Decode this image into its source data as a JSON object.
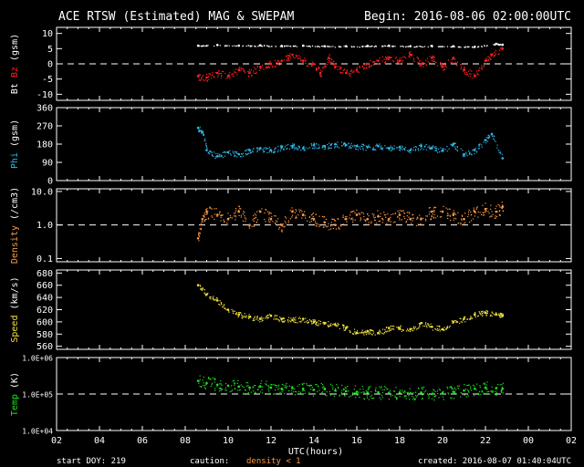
{
  "header": {
    "title": "ACE RTSW (Estimated) MAG & SWEPAM",
    "begin": "Begin: 2016-08-06 02:00:00UTC"
  },
  "footer": {
    "start_doy": "start DOY: 219",
    "caution_label": "caution:",
    "caution_text": "density < 1",
    "created": "created: 2016-08-07 01:40:04UTC"
  },
  "colors": {
    "bt": "#ffffff",
    "bz": "#ff2020",
    "phi": "#30b8e8",
    "density": "#ff9a40",
    "speed": "#f0e040",
    "temp": "#20e020",
    "axis": "#ffffff",
    "caution": "#ff9a40"
  },
  "chart_data": {
    "type": "scatter",
    "xlabel": "UTC(hours)",
    "x_ticks": [
      "02",
      "04",
      "06",
      "08",
      "10",
      "12",
      "14",
      "16",
      "18",
      "20",
      "22",
      "00",
      "02"
    ],
    "x_range_hours": [
      2,
      26
    ],
    "data_start_hour": 8.6,
    "data_end_hour": 22.8,
    "panels": [
      {
        "id": "mag",
        "ylabel_parts": [
          "Bt",
          "Bz",
          "(gsm)"
        ],
        "ylim": [
          -12,
          12
        ],
        "yticks": [
          10,
          5,
          0,
          -5,
          -10
        ],
        "reference_line": 0,
        "series": [
          {
            "name": "Bt",
            "color_key": "bt",
            "points": [
              [
                8.6,
                6.0
              ],
              [
                9.5,
                6.2
              ],
              [
                10.5,
                6.0
              ],
              [
                11.5,
                6.1
              ],
              [
                12.5,
                5.9
              ],
              [
                13.5,
                6.0
              ],
              [
                14.5,
                5.8
              ],
              [
                15.5,
                5.8
              ],
              [
                16.5,
                5.9
              ],
              [
                17.5,
                6.0
              ],
              [
                18.5,
                5.8
              ],
              [
                19.5,
                5.9
              ],
              [
                20.5,
                5.8
              ],
              [
                21.5,
                5.6
              ],
              [
                22.5,
                6.6
              ],
              [
                22.8,
                6.3
              ]
            ]
          },
          {
            "name": "Bz",
            "color_key": "bz",
            "points": [
              [
                8.6,
                -4
              ],
              [
                9.0,
                -4.5
              ],
              [
                9.5,
                -3
              ],
              [
                10.0,
                -4
              ],
              [
                10.5,
                -2
              ],
              [
                11.0,
                -3
              ],
              [
                11.5,
                -1
              ],
              [
                12.0,
                0
              ],
              [
                12.5,
                1
              ],
              [
                13.0,
                3
              ],
              [
                13.5,
                1
              ],
              [
                14.0,
                0
              ],
              [
                14.3,
                -3
              ],
              [
                14.7,
                2
              ],
              [
                15.0,
                -1
              ],
              [
                15.5,
                -3
              ],
              [
                16.0,
                -2
              ],
              [
                16.5,
                0
              ],
              [
                17.0,
                1
              ],
              [
                17.5,
                2
              ],
              [
                18.0,
                1
              ],
              [
                18.5,
                3
              ],
              [
                19.0,
                0
              ],
              [
                19.5,
                2
              ],
              [
                20.0,
                -1
              ],
              [
                20.5,
                2
              ],
              [
                21.0,
                -2
              ],
              [
                21.5,
                -4
              ],
              [
                22.0,
                1
              ],
              [
                22.3,
                3
              ],
              [
                22.8,
                5
              ]
            ]
          }
        ]
      },
      {
        "id": "phi",
        "ylabel_parts": [
          "Phi",
          "(gsm)"
        ],
        "ylim": [
          0,
          360
        ],
        "yticks": [
          360,
          270,
          180,
          90,
          0
        ],
        "series": [
          {
            "name": "Phi",
            "color_key": "phi",
            "points": [
              [
                8.6,
                260
              ],
              [
                8.8,
                240
              ],
              [
                9.0,
                150
              ],
              [
                9.5,
                120
              ],
              [
                10.0,
                140
              ],
              [
                10.5,
                130
              ],
              [
                11.0,
                150
              ],
              [
                11.5,
                160
              ],
              [
                12.0,
                150
              ],
              [
                12.5,
                165
              ],
              [
                13.0,
                170
              ],
              [
                13.5,
                160
              ],
              [
                14.0,
                175
              ],
              [
                14.5,
                170
              ],
              [
                15.0,
                180
              ],
              [
                15.5,
                175
              ],
              [
                16.0,
                170
              ],
              [
                16.5,
                165
              ],
              [
                17.0,
                170
              ],
              [
                17.5,
                160
              ],
              [
                18.0,
                165
              ],
              [
                18.5,
                150
              ],
              [
                19.0,
                170
              ],
              [
                19.5,
                160
              ],
              [
                20.0,
                150
              ],
              [
                20.5,
                180
              ],
              [
                21.0,
                130
              ],
              [
                21.5,
                150
              ],
              [
                22.0,
                200
              ],
              [
                22.3,
                230
              ],
              [
                22.8,
                110
              ]
            ]
          }
        ]
      },
      {
        "id": "density",
        "ylabel_parts": [
          "Density",
          "(/cm3)"
        ],
        "scale": "log",
        "ylim": [
          0.08,
          12
        ],
        "yticks": [
          10.0,
          1.0,
          0.1
        ],
        "reference_line": 1.0,
        "series": [
          {
            "name": "Density",
            "color_key": "density",
            "points": [
              [
                8.6,
                0.4
              ],
              [
                8.8,
                1.5
              ],
              [
                9.0,
                2.5
              ],
              [
                9.5,
                2.0
              ],
              [
                10.0,
                1.5
              ],
              [
                10.5,
                2.5
              ],
              [
                11.0,
                1.0
              ],
              [
                11.5,
                2.5
              ],
              [
                12.0,
                1.5
              ],
              [
                12.5,
                1.0
              ],
              [
                13.0,
                2.5
              ],
              [
                13.5,
                2.0
              ],
              [
                14.0,
                1.5
              ],
              [
                14.5,
                1.2
              ],
              [
                15.0,
                1.0
              ],
              [
                15.5,
                1.5
              ],
              [
                16.0,
                2.0
              ],
              [
                16.5,
                1.5
              ],
              [
                17.0,
                1.8
              ],
              [
                17.5,
                1.5
              ],
              [
                18.0,
                2.0
              ],
              [
                18.5,
                1.5
              ],
              [
                19.0,
                1.5
              ],
              [
                19.5,
                2.5
              ],
              [
                20.0,
                2.5
              ],
              [
                20.5,
                2.0
              ],
              [
                21.0,
                1.5
              ],
              [
                21.5,
                2.5
              ],
              [
                22.0,
                3.0
              ],
              [
                22.5,
                2.5
              ],
              [
                22.8,
                3.5
              ]
            ]
          }
        ]
      },
      {
        "id": "speed",
        "ylabel_parts": [
          "Speed",
          "(km/s)"
        ],
        "ylim": [
          555,
          685
        ],
        "yticks": [
          680,
          660,
          640,
          620,
          600,
          580,
          560
        ],
        "series": [
          {
            "name": "Speed",
            "color_key": "speed",
            "points": [
              [
                8.6,
                660
              ],
              [
                9.0,
                645
              ],
              [
                9.5,
                635
              ],
              [
                10.0,
                620
              ],
              [
                10.5,
                612
              ],
              [
                11.0,
                608
              ],
              [
                11.5,
                605
              ],
              [
                12.0,
                610
              ],
              [
                12.5,
                605
              ],
              [
                13.0,
                603
              ],
              [
                13.5,
                605
              ],
              [
                14.0,
                600
              ],
              [
                14.5,
                598
              ],
              [
                15.0,
                595
              ],
              [
                15.5,
                590
              ],
              [
                16.0,
                582
              ],
              [
                16.5,
                585
              ],
              [
                17.0,
                582
              ],
              [
                17.5,
                590
              ],
              [
                18.0,
                590
              ],
              [
                18.5,
                588
              ],
              [
                19.0,
                598
              ],
              [
                19.5,
                592
              ],
              [
                20.0,
                588
              ],
              [
                20.5,
                600
              ],
              [
                21.0,
                605
              ],
              [
                21.5,
                612
              ],
              [
                22.0,
                615
              ],
              [
                22.5,
                612
              ],
              [
                22.8,
                610
              ]
            ]
          }
        ]
      },
      {
        "id": "temp",
        "ylabel_parts": [
          "Temp",
          "(K)"
        ],
        "scale": "log",
        "ylim": [
          10000,
          1000000
        ],
        "yticks": [
          "1.0E+06",
          "1.0E+05",
          "1.0E+04"
        ],
        "reference_line": 100000,
        "series": [
          {
            "name": "Temp",
            "color_key": "temp",
            "points": [
              [
                8.6,
                230000
              ],
              [
                9.0,
                200000
              ],
              [
                9.5,
                180000
              ],
              [
                10.0,
                170000
              ],
              [
                10.5,
                160000
              ],
              [
                11.0,
                150000
              ],
              [
                11.5,
                160000
              ],
              [
                12.0,
                150000
              ],
              [
                12.5,
                140000
              ],
              [
                13.0,
                145000
              ],
              [
                13.5,
                140000
              ],
              [
                14.0,
                130000
              ],
              [
                14.5,
                135000
              ],
              [
                15.0,
                125000
              ],
              [
                15.5,
                120000
              ],
              [
                16.0,
                115000
              ],
              [
                16.5,
                110000
              ],
              [
                17.0,
                112000
              ],
              [
                17.5,
                108000
              ],
              [
                18.0,
                110000
              ],
              [
                18.5,
                105000
              ],
              [
                19.0,
                110000
              ],
              [
                19.5,
                100000
              ],
              [
                20.0,
                108000
              ],
              [
                20.5,
                115000
              ],
              [
                21.0,
                125000
              ],
              [
                21.5,
                140000
              ],
              [
                22.0,
                150000
              ],
              [
                22.5,
                145000
              ],
              [
                22.8,
                140000
              ]
            ]
          }
        ]
      }
    ]
  }
}
